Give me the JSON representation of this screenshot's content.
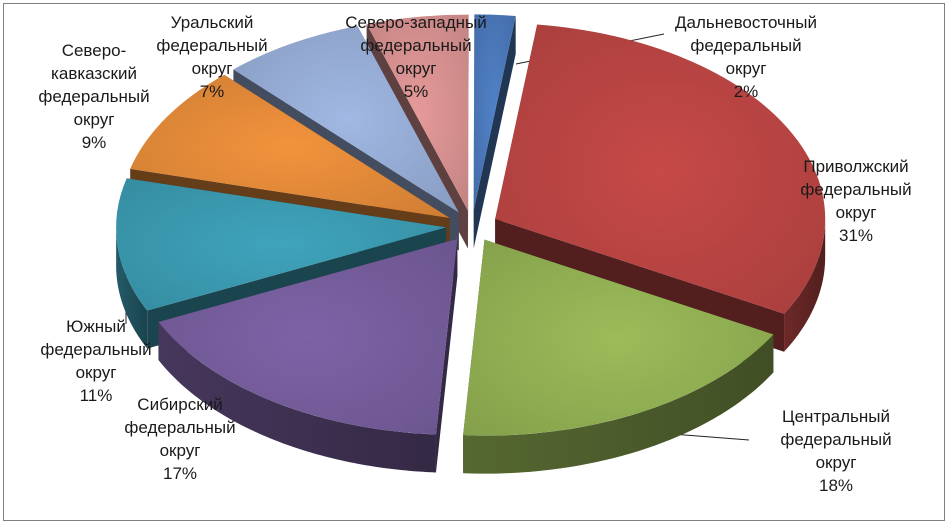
{
  "chart_data": {
    "type": "pie",
    "title": "",
    "exploded": true,
    "three_d": true,
    "slices": [
      {
        "name": "Дальневосточный федеральный округ",
        "label_lines": [
          "Дальневосточный",
          "федеральный",
          "округ",
          "2%"
        ],
        "value": 2,
        "color": "#4a77b8"
      },
      {
        "name": "Приволжский федеральный округ",
        "label_lines": [
          "Приволжский",
          "федеральный",
          "округ",
          "31%"
        ],
        "value": 31,
        "color": "#b74442"
      },
      {
        "name": "Центральный федеральный округ",
        "label_lines": [
          "Центральный",
          "федеральный",
          "округ",
          "18%"
        ],
        "value": 18,
        "color": "#90ae52"
      },
      {
        "name": "Сибирский федеральный округ",
        "label_lines": [
          "Сибирский",
          "федеральный",
          "округ",
          "17%"
        ],
        "value": 17,
        "color": "#745c9a"
      },
      {
        "name": "Южный федеральный округ",
        "label_lines": [
          "Южный",
          "федеральный",
          "округ",
          "11%"
        ],
        "value": 11,
        "color": "#3a98ae"
      },
      {
        "name": "Северо-кавказский федеральный округ",
        "label_lines": [
          "Северо-",
          "кавказский",
          "федеральный",
          "округ",
          "9%"
        ],
        "value": 9,
        "color": "#e08838"
      },
      {
        "name": "Уральский федеральный округ",
        "label_lines": [
          "Уральский",
          "федеральный",
          "округ",
          "7%"
        ],
        "value": 7,
        "color": "#94aad2"
      },
      {
        "name": "Северо-западный федеральный округ",
        "label_lines": [
          "Северо-западный",
          "федеральный",
          "округ",
          "5%"
        ],
        "value": 5,
        "color": "#d48f8e"
      }
    ]
  }
}
